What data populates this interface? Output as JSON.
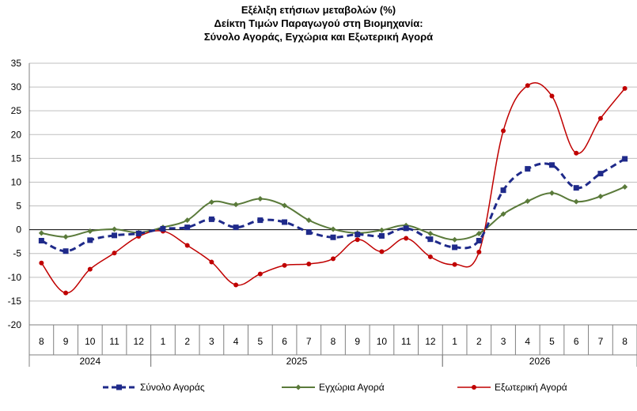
{
  "chart_data": {
    "type": "line",
    "title": [
      "Εξέλιξη ετήσιων μεταβολών (%)",
      "Δείκτη Τιμών Παραγωγού στη Βιομηχανία:",
      "Σύνολο Αγοράς, Εγχώρια και Εξωτερική Αγορά"
    ],
    "months": [
      "8",
      "9",
      "10",
      "11",
      "12",
      "1",
      "2",
      "3",
      "4",
      "5",
      "6",
      "7",
      "8",
      "9",
      "10",
      "11",
      "12",
      "1",
      "2",
      "3",
      "4",
      "5",
      "6",
      "7",
      "8"
    ],
    "years": [
      {
        "label": "2024",
        "start": 0,
        "end": 5
      },
      {
        "label": "2025",
        "start": 5,
        "end": 17
      },
      {
        "label": "2026",
        "start": 17,
        "end": 25
      }
    ],
    "ylim": [
      -20,
      35
    ],
    "yticks": [
      -20,
      -15,
      -10,
      -5,
      0,
      5,
      10,
      15,
      20,
      25,
      30,
      35
    ],
    "grid": true,
    "series": [
      {
        "name": "Σύνολο Αγοράς",
        "color": "#1f2a8a",
        "style": "dashed",
        "values": [
          -2.3,
          -4.5,
          -2.2,
          -1.2,
          -0.8,
          0.2,
          0.5,
          2.2,
          0.5,
          2.0,
          1.6,
          -0.5,
          -1.6,
          -1.0,
          -1.3,
          0.3,
          -2.0,
          -3.7,
          -2.3,
          8.3,
          12.8,
          13.6,
          8.8,
          11.8,
          14.9
        ]
      },
      {
        "name": "Εγχώρια Αγορά",
        "color": "#5a7a3a",
        "style": "solid",
        "values": [
          -0.7,
          -1.5,
          -0.3,
          0.1,
          -0.6,
          0.5,
          2.0,
          5.8,
          5.3,
          6.5,
          5.1,
          2.0,
          0.1,
          -0.7,
          -0.1,
          0.9,
          -0.8,
          -2.1,
          -0.8,
          3.3,
          6.0,
          7.7,
          5.9,
          7.0,
          9.0
        ]
      },
      {
        "name": "Εξωτερική Αγορά",
        "color": "#c00000",
        "style": "solid",
        "values": [
          -7.0,
          -13.3,
          -8.3,
          -4.9,
          -1.4,
          -0.3,
          -3.3,
          -6.8,
          -11.6,
          -9.3,
          -7.5,
          -7.2,
          -6.1,
          -2.1,
          -4.6,
          -1.8,
          -5.7,
          -7.3,
          -4.7,
          20.8,
          30.3,
          28.1,
          16.1,
          23.4,
          29.7
        ]
      }
    ]
  }
}
